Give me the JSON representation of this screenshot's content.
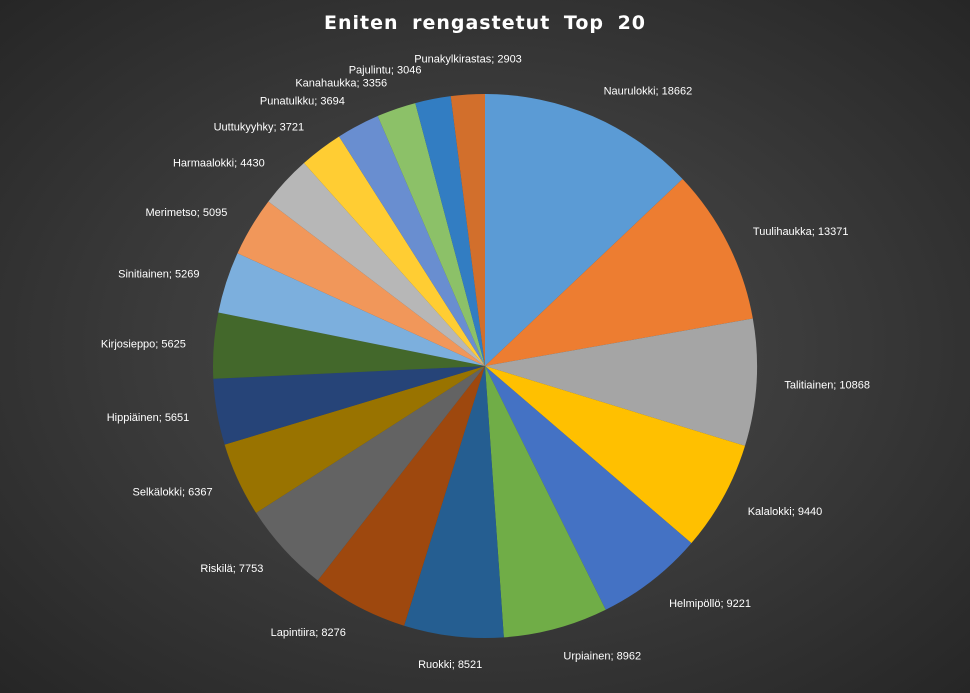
{
  "chart_data": {
    "type": "pie",
    "title": "Eniten rengastetut Top 20",
    "legend": "none",
    "slices": [
      {
        "label": "Naurulokki",
        "value": 18662,
        "color": "#5b9bd5"
      },
      {
        "label": "Tuulihaukka",
        "value": 13371,
        "color": "#ed7d31"
      },
      {
        "label": "Talitiainen",
        "value": 10868,
        "color": "#a5a5a5"
      },
      {
        "label": "Kalalokki",
        "value": 9440,
        "color": "#ffc000"
      },
      {
        "label": "Helmipöllö",
        "value": 9221,
        "color": "#4472c4"
      },
      {
        "label": "Urpiainen",
        "value": 8962,
        "color": "#70ad47"
      },
      {
        "label": "Ruokki",
        "value": 8521,
        "color": "#255e91"
      },
      {
        "label": "Lapintiira",
        "value": 8276,
        "color": "#9e480e"
      },
      {
        "label": "Riskilä",
        "value": 7753,
        "color": "#636363"
      },
      {
        "label": "Selkälokki",
        "value": 6367,
        "color": "#997300"
      },
      {
        "label": "Hippiäinen",
        "value": 5651,
        "color": "#264478"
      },
      {
        "label": "Kirjosieppo",
        "value": 5625,
        "color": "#43682b"
      },
      {
        "label": "Sinitiainen",
        "value": 5269,
        "color": "#7cafdd"
      },
      {
        "label": "Merimetso",
        "value": 5095,
        "color": "#f1975a"
      },
      {
        "label": "Harmaalokki",
        "value": 4430,
        "color": "#b7b7b7"
      },
      {
        "label": "Uuttukyyhky",
        "value": 3721,
        "color": "#ffcd33"
      },
      {
        "label": "Punatulkku",
        "value": 3694,
        "color": "#698ed0"
      },
      {
        "label": "Kanahaukka",
        "value": 3356,
        "color": "#8cc168"
      },
      {
        "label": "Pajulintu",
        "value": 3046,
        "color": "#327dc2"
      },
      {
        "label": "Punakylkirastas",
        "value": 2903,
        "color": "#d26f2c"
      }
    ],
    "label_separator": "; "
  }
}
